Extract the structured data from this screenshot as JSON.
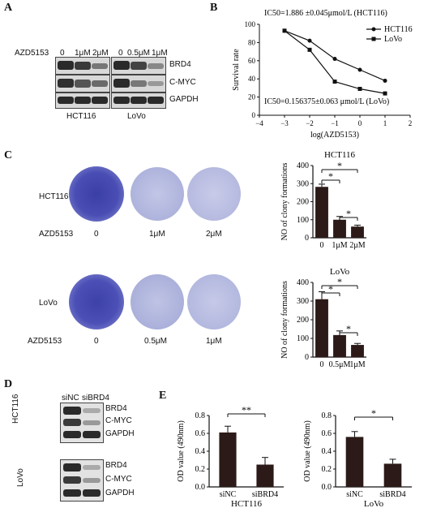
{
  "panels": {
    "a": "A",
    "b": "B",
    "c": "C",
    "d": "D",
    "e": "E"
  },
  "panel_a": {
    "drug": "AZD5153",
    "doses": [
      "0",
      "1μM",
      "2μM",
      "0",
      "0.5μM",
      "1μM"
    ],
    "proteins": [
      "BRD4",
      "C-MYC",
      "GAPDH"
    ],
    "cell_lines": [
      "HCT116",
      "LoVo"
    ]
  },
  "panel_c": {
    "rows": [
      {
        "cell": "HCT116",
        "drug": "AZD5153",
        "doses": [
          "0",
          "1μM",
          "2μM"
        ]
      },
      {
        "cell": "LoVo",
        "drug": "AZD5153",
        "doses": [
          "0",
          "0.5μM",
          "1μM"
        ]
      }
    ]
  },
  "panel_d": {
    "conditions": [
      "siNC",
      "siBRD4"
    ],
    "cell_lines": [
      "HCT116",
      "LoVo"
    ],
    "proteins": [
      "BRD4",
      "C-MYC",
      "GAPDH"
    ]
  },
  "chart_data": [
    {
      "id": "B",
      "type": "line",
      "title": "",
      "annotations": [
        "IC50=1.886 ±0.045μmol/L  (HCT116)",
        "IC50=0.156375±0.063  μmol/L (LoVo)"
      ],
      "xlabel": "log(AZD5153)",
      "ylabel": "Survival rate",
      "xlim": [
        -4,
        2
      ],
      "ylim": [
        0,
        100
      ],
      "xticks": [
        "−4",
        "−3",
        "−2",
        "−1",
        "0",
        "1",
        "2"
      ],
      "yticks": [
        "0",
        "20",
        "40",
        "60",
        "80",
        "100"
      ],
      "series": [
        {
          "name": "HCT116",
          "marker": "circle",
          "x": [
            -3,
            -2,
            -1,
            0,
            1
          ],
          "y": [
            93,
            82,
            62,
            50,
            38
          ]
        },
        {
          "name": "LoVo",
          "marker": "square",
          "x": [
            -3,
            -2,
            -1,
            0,
            1
          ],
          "y": [
            93,
            72,
            37,
            29,
            24
          ]
        }
      ],
      "legend": "top-right"
    },
    {
      "id": "C-HCT116",
      "type": "bar",
      "title": "HCT116",
      "ylabel": "NO of clony formations",
      "categories": [
        "0",
        "1μM",
        "2μM"
      ],
      "values": [
        282,
        100,
        62
      ],
      "errors": [
        15,
        18,
        8
      ],
      "ylim": [
        0,
        400
      ],
      "yticks": [
        "0",
        "100",
        "200",
        "300",
        "400"
      ],
      "significance": [
        {
          "from": 0,
          "to": 1,
          "label": "*"
        },
        {
          "from": 0,
          "to": 2,
          "label": "*"
        },
        {
          "from": 1,
          "to": 2,
          "label": "*"
        }
      ]
    },
    {
      "id": "C-LoVo",
      "type": "bar",
      "title": "LoVo",
      "ylabel": "NO of clony formations",
      "categories": [
        "0",
        "0.5μM",
        "1μM"
      ],
      "values": [
        310,
        118,
        65
      ],
      "errors": [
        40,
        22,
        8
      ],
      "ylim": [
        0,
        400
      ],
      "yticks": [
        "0",
        "100",
        "200",
        "300",
        "400"
      ],
      "significance": [
        {
          "from": 0,
          "to": 1,
          "label": "*"
        },
        {
          "from": 0,
          "to": 2,
          "label": "*"
        },
        {
          "from": 1,
          "to": 2,
          "label": "*"
        }
      ]
    },
    {
      "id": "E-HCT116",
      "type": "bar",
      "title": "",
      "xlabel": "HCT116",
      "ylabel": "OD value (490nm)",
      "categories": [
        "siNC",
        "siBRD4"
      ],
      "values": [
        0.61,
        0.25
      ],
      "errors": [
        0.07,
        0.08
      ],
      "ylim": [
        0,
        0.8
      ],
      "yticks": [
        "0.0",
        "0.2",
        "0.4",
        "0.6",
        "0.8"
      ],
      "significance": [
        {
          "from": 0,
          "to": 1,
          "label": "**"
        }
      ]
    },
    {
      "id": "E-LoVo",
      "type": "bar",
      "title": "",
      "xlabel": "LoVo",
      "ylabel": "OD value (490nm)",
      "categories": [
        "siNC",
        "siBRD4"
      ],
      "values": [
        0.56,
        0.26
      ],
      "errors": [
        0.06,
        0.05
      ],
      "ylim": [
        0,
        0.8
      ],
      "yticks": [
        "0.0",
        "0.2",
        "0.4",
        "0.6",
        "0.8"
      ],
      "significance": [
        {
          "from": 0,
          "to": 1,
          "label": "*"
        }
      ]
    }
  ]
}
